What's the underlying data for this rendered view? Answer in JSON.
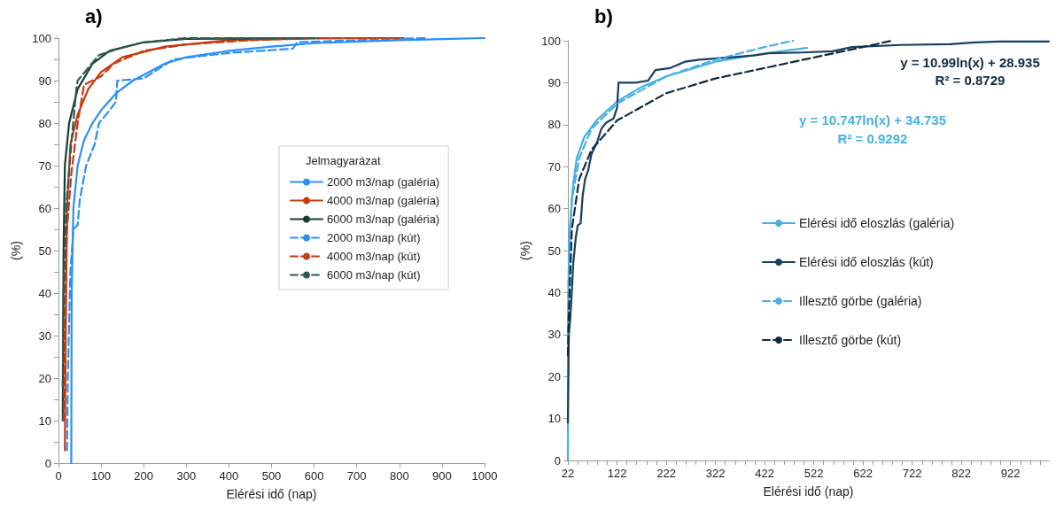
{
  "chart_data": [
    {
      "type": "line",
      "title": "a)",
      "xlabel": "Elérési idő (nap)",
      "ylabel": "(%)",
      "legend_title": "Jelmagyarázat",
      "legend": "right",
      "grid": false,
      "xlim": [
        0,
        1000
      ],
      "xticks": [
        0,
        100,
        200,
        300,
        400,
        500,
        600,
        700,
        800,
        900,
        1000
      ],
      "ylim": [
        0,
        100
      ],
      "yticks": [
        0,
        {
          "value": 5,
          "label": null
        },
        10,
        {
          "value": 15,
          "label": null
        },
        20,
        {
          "value": 25,
          "label": null
        },
        30,
        {
          "value": 35,
          "label": null
        },
        40,
        {
          "value": 45,
          "label": null
        },
        50,
        {
          "value": 55,
          "label": null
        },
        60,
        {
          "value": 65,
          "label": null
        },
        70,
        {
          "value": 75,
          "label": null
        },
        80,
        {
          "value": 85,
          "label": null
        },
        90,
        {
          "value": 95,
          "label": null
        },
        100
      ],
      "series": [
        {
          "name": "2000 m3/nap (galéria)",
          "color": "#2a8ff7",
          "line_style": "solid",
          "x": [
            30,
            31,
            35,
            45,
            60,
            80,
            100,
            135,
            175,
            250,
            300,
            400,
            500,
            600,
            800,
            1000
          ],
          "values": [
            0,
            40,
            60,
            70,
            76,
            80,
            83,
            87,
            90,
            94,
            95.5,
            97,
            98,
            98.8,
            99.5,
            100
          ]
        },
        {
          "name": "4000 m3/nap (galéria)",
          "color": "#c8380f",
          "line_style": "solid",
          "x": [
            15,
            17,
            20,
            28,
            45,
            70,
            100,
            150,
            250,
            400,
            600,
            810
          ],
          "values": [
            3,
            30,
            60,
            75,
            82,
            88,
            92,
            95.5,
            98,
            99.5,
            99.9,
            100
          ]
        },
        {
          "name": "6000 m3/nap (galéria)",
          "color": "#123d33",
          "line_style": "solid",
          "x": [
            10,
            12,
            15,
            25,
            45,
            80,
            120,
            200,
            300,
            610
          ],
          "values": [
            10,
            50,
            70,
            80,
            88,
            94,
            97,
            99,
            99.8,
            100
          ]
        },
        {
          "name": "2000 m3/nap (kút)",
          "color": "#2a8ff7",
          "line_style": "dashed",
          "x": [
            20,
            22,
            28,
            35,
            45,
            50,
            65,
            85,
            95,
            120,
            135,
            138,
            200,
            270,
            400,
            550,
            560,
            700,
            860
          ],
          "values": [
            3,
            20,
            45,
            55,
            56,
            62,
            70,
            75,
            80,
            83,
            85,
            90,
            90.5,
            95,
            96.5,
            97.5,
            99,
            99.5,
            100
          ]
        },
        {
          "name": "4000 m3/nap (kút)",
          "color": "#c8380f",
          "line_style": "dashed",
          "x": [
            12,
            15,
            20,
            30,
            45,
            60,
            80,
            100,
            130,
            200,
            300,
            450,
            600,
            800
          ],
          "values": [
            10,
            40,
            55,
            68,
            80,
            89,
            90,
            91,
            94,
            97,
            98.5,
            99.5,
            100,
            100
          ]
        },
        {
          "name": "6000 m3/nap (kút)",
          "color": "#2f5a55",
          "line_style": "dashed",
          "x": [
            10,
            12,
            18,
            30,
            42,
            45,
            70,
            95,
            140,
            200,
            300,
            600
          ],
          "values": [
            18,
            40,
            60,
            75,
            88,
            90,
            93,
            96,
            97.5,
            99,
            100,
            100
          ]
        }
      ]
    },
    {
      "type": "line",
      "title": "b)",
      "xlabel": "Elérési idő (nap)",
      "ylabel": "(%)",
      "legend": "right",
      "grid": false,
      "xlim": [
        22,
        1000
      ],
      "xticks": [
        22,
        {
          "value": 42,
          "label": null
        },
        {
          "value": 62,
          "label": null
        },
        {
          "value": 82,
          "label": null
        },
        {
          "value": 102,
          "label": null
        },
        122,
        {
          "value": 142,
          "label": null
        },
        {
          "value": 162,
          "label": null
        },
        {
          "value": 182,
          "label": null
        },
        {
          "value": 202,
          "label": null
        },
        222,
        {
          "value": 242,
          "label": null
        },
        {
          "value": 262,
          "label": null
        },
        {
          "value": 282,
          "label": null
        },
        {
          "value": 302,
          "label": null
        },
        322,
        {
          "value": 342,
          "label": null
        },
        {
          "value": 362,
          "label": null
        },
        {
          "value": 382,
          "label": null
        },
        {
          "value": 402,
          "label": null
        },
        422,
        {
          "value": 442,
          "label": null
        },
        {
          "value": 462,
          "label": null
        },
        {
          "value": 482,
          "label": null
        },
        {
          "value": 502,
          "label": null
        },
        522,
        {
          "value": 542,
          "label": null
        },
        {
          "value": 562,
          "label": null
        },
        {
          "value": 582,
          "label": null
        },
        {
          "value": 602,
          "label": null
        },
        622,
        {
          "value": 642,
          "label": null
        },
        {
          "value": 662,
          "label": null
        },
        {
          "value": 682,
          "label": null
        },
        {
          "value": 702,
          "label": null
        },
        722,
        {
          "value": 742,
          "label": null
        },
        {
          "value": 762,
          "label": null
        },
        {
          "value": 782,
          "label": null
        },
        {
          "value": 802,
          "label": null
        },
        822,
        {
          "value": 842,
          "label": null
        },
        {
          "value": 862,
          "label": null
        },
        {
          "value": 882,
          "label": null
        },
        {
          "value": 902,
          "label": null
        },
        922,
        {
          "value": 942,
          "label": null
        },
        {
          "value": 962,
          "label": null
        },
        {
          "value": 982,
          "label": null
        }
      ],
      "ylim": [
        0,
        100
      ],
      "yticks": [
        0,
        10,
        20,
        30,
        40,
        50,
        60,
        70,
        80,
        90,
        100
      ],
      "annotations": [
        "y = 10.99ln(x) + 28.935",
        "R² = 0.8729",
        "y = 10.747ln(x) + 34.735",
        "R² = 0.9292"
      ],
      "series": [
        {
          "name": "Elérési idő eloszlás (galéria)",
          "color": "#45b0e5",
          "line_style": "solid",
          "x": [
            22,
            23,
            26,
            32,
            40,
            55,
            80,
            122,
            172,
            222,
            322,
            422,
            508
          ],
          "values": [
            0,
            40,
            55,
            65,
            72,
            77,
            81,
            85.5,
            89,
            91.5,
            95,
            97,
            98.3
          ]
        },
        {
          "name": "Elérési idő eloszlás (kút)",
          "color": "#173f5f",
          "line_style": "solid",
          "x": [
            22,
            24,
            27,
            30,
            33,
            38,
            42,
            48,
            52,
            57,
            63,
            70,
            82,
            90,
            100,
            115,
            122,
            125,
            160,
            185,
            200,
            230,
            260,
            290,
            350,
            400,
            430,
            500,
            560,
            600,
            700,
            800,
            850,
            900,
            1000
          ],
          "values": [
            9,
            30,
            34,
            40,
            47,
            53,
            56,
            56.5,
            63,
            67,
            69,
            73,
            76,
            79,
            80.5,
            81.5,
            84,
            90,
            90,
            90.5,
            93,
            93.5,
            95,
            95.5,
            96,
            96.5,
            97,
            97.2,
            97.5,
            98.5,
            99,
            99.2,
            99.6,
            99.8,
            99.8
          ]
        },
        {
          "name": "Illesztő görbe (galéria)",
          "color": "#45b0e5",
          "line_style": "dashed",
          "x": [
            22,
            24,
            30,
            45,
            70,
            122,
            222,
            322,
            422,
            480
          ],
          "values": [
            30,
            50,
            62,
            72,
            79,
            85,
            91.5,
            95.5,
            98.5,
            100
          ]
        },
        {
          "name": "Illesztő görbe (kút)",
          "color": "#0f2a3f",
          "line_style": "dashed",
          "x": [
            22,
            24,
            30,
            45,
            70,
            122,
            222,
            322,
            422,
            522,
            622,
            680
          ],
          "values": [
            25,
            35,
            55,
            67,
            74,
            81,
            87.5,
            91,
            93.5,
            96,
            98.5,
            100
          ]
        }
      ]
    }
  ]
}
